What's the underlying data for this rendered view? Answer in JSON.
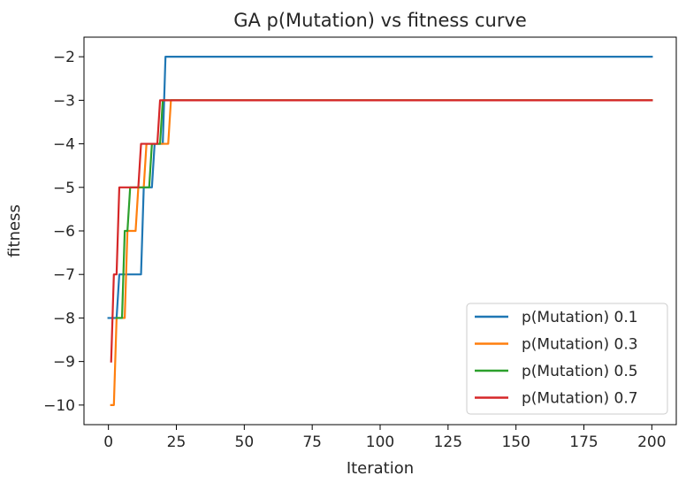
{
  "chart_data": {
    "type": "line",
    "title": "GA p(Mutation) vs fitness curve",
    "xlabel": "Iteration",
    "ylabel": "fitness",
    "xlim": [
      -9,
      209
    ],
    "ylim": [
      -10.45,
      -1.55
    ],
    "xticks": [
      0,
      25,
      50,
      75,
      100,
      125,
      150,
      175,
      200
    ],
    "xtick_labels": [
      "0",
      "25",
      "50",
      "75",
      "100",
      "125",
      "150",
      "175",
      "200"
    ],
    "yticks": [
      -2,
      -3,
      -4,
      -5,
      -6,
      -7,
      -8,
      -9,
      -10
    ],
    "ytick_labels": [
      "−2",
      "−3",
      "−4",
      "−5",
      "−6",
      "−7",
      "−8",
      "−9",
      "−10"
    ],
    "grid": false,
    "legend_position": "lower-right",
    "series": [
      {
        "name": "p(Mutation) 0.1",
        "color": "#1f77b4",
        "x": [
          0,
          3,
          4,
          12,
          13,
          16,
          17,
          20,
          21,
          200
        ],
        "y": [
          -8,
          -8,
          -7,
          -7,
          -5,
          -5,
          -4,
          -4,
          -2,
          -2
        ]
      },
      {
        "name": "p(Mutation) 0.3",
        "color": "#ff7f0e",
        "x": [
          1,
          2,
          3,
          6,
          7,
          10,
          11,
          13,
          14,
          22,
          23,
          200
        ],
        "y": [
          -10,
          -10,
          -8,
          -8,
          -6,
          -6,
          -5,
          -5,
          -4,
          -4,
          -3,
          -3
        ]
      },
      {
        "name": "p(Mutation) 0.5",
        "color": "#2ca02c",
        "x": [
          3,
          5,
          6,
          7,
          8,
          13,
          14,
          15,
          16,
          19,
          20,
          200
        ],
        "y": [
          -8,
          -8,
          -6,
          -6,
          -5,
          -5,
          -5,
          -5,
          -4,
          -4,
          -3,
          -3
        ]
      },
      {
        "name": "p(Mutation) 0.7",
        "color": "#d62728",
        "x": [
          1,
          2,
          3,
          4,
          11,
          12,
          18,
          19,
          200
        ],
        "y": [
          -9,
          -7,
          -7,
          -5,
          -5,
          -4,
          -4,
          -3,
          -3
        ]
      }
    ]
  }
}
